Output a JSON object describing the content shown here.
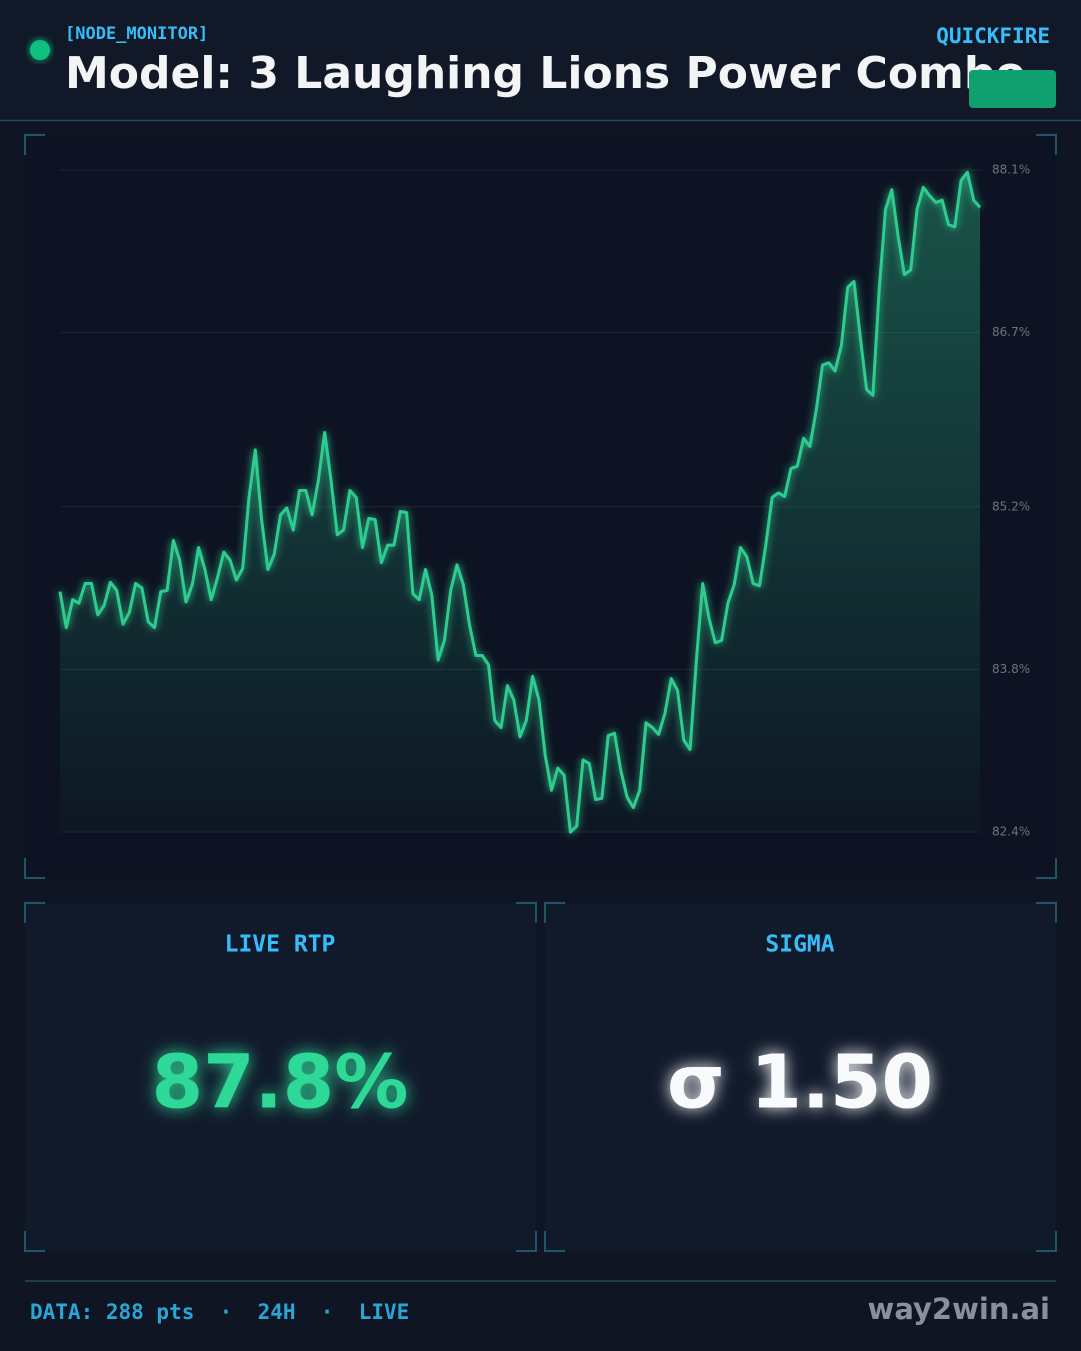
{
  "header": {
    "tag": "[NODE_MONITOR]",
    "title": "Model: 3 Laughing Lions Power Combo",
    "badge": "QUICKFIRE"
  },
  "chart_data": {
    "type": "line",
    "color": "#2ecc8f",
    "grid": true,
    "ylim": [
      82.4,
      88.1
    ],
    "yticks": [
      {
        "value": 82.4,
        "label": "82.4%"
      },
      {
        "value": 83.8,
        "label": "83.8%"
      },
      {
        "value": 85.2,
        "label": "85.2%"
      },
      {
        "value": 86.7,
        "label": "86.7%"
      },
      {
        "value": 88.1,
        "label": "88.1%"
      }
    ],
    "values": [
      84.47,
      84.16,
      84.4,
      84.37,
      84.54,
      84.54,
      84.27,
      84.35,
      84.55,
      84.48,
      84.19,
      84.29,
      84.54,
      84.5,
      84.21,
      84.16,
      84.47,
      84.48,
      84.91,
      84.74,
      84.38,
      84.53,
      84.85,
      84.66,
      84.4,
      84.59,
      84.81,
      84.74,
      84.57,
      84.67,
      85.28,
      85.69,
      85.09,
      84.66,
      84.79,
      85.13,
      85.19,
      85.0,
      85.34,
      85.34,
      85.13,
      85.43,
      85.84,
      85.43,
      84.96,
      85.0,
      85.34,
      85.28,
      84.85,
      85.1,
      85.09,
      84.72,
      84.87,
      84.87,
      85.16,
      85.15,
      84.45,
      84.4,
      84.66,
      84.44,
      83.88,
      84.05,
      84.48,
      84.7,
      84.53,
      84.18,
      83.92,
      83.92,
      83.84,
      83.36,
      83.3,
      83.66,
      83.54,
      83.22,
      83.36,
      83.74,
      83.54,
      83.06,
      82.76,
      82.95,
      82.89,
      82.4,
      82.45,
      83.02,
      82.99,
      82.68,
      82.69,
      83.23,
      83.25,
      82.93,
      82.7,
      82.61,
      82.76,
      83.34,
      83.3,
      83.24,
      83.42,
      83.72,
      83.62,
      83.19,
      83.11,
      83.88,
      84.54,
      84.24,
      84.03,
      84.05,
      84.37,
      84.53,
      84.85,
      84.77,
      84.54,
      84.52,
      84.87,
      85.28,
      85.32,
      85.29,
      85.53,
      85.55,
      85.79,
      85.72,
      86.03,
      86.42,
      86.44,
      86.37,
      86.59,
      87.09,
      87.14,
      86.66,
      86.21,
      86.16,
      87.07,
      87.76,
      87.93,
      87.53,
      87.2,
      87.24,
      87.76,
      87.95,
      87.88,
      87.82,
      87.84,
      87.63,
      87.61,
      88.01,
      88.08,
      87.84,
      87.78
    ]
  },
  "stats": [
    {
      "label": "LIVE RTP",
      "value": "87.8%"
    },
    {
      "label": "SIGMA",
      "value": "σ 1.50"
    }
  ],
  "footer": {
    "info": "DATA: 288 pts  ·  24H  ·  LIVE",
    "brand": "way2win.ai"
  }
}
